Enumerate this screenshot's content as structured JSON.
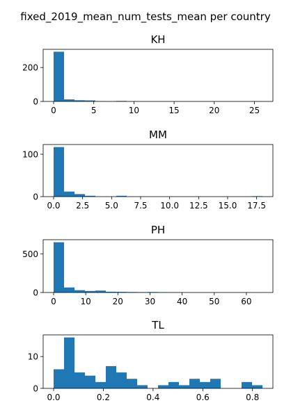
{
  "figure": {
    "suptitle": "fixed_2019_mean_num_tests_mean per country",
    "bar_color": "#1f77b4"
  },
  "chart_data": [
    {
      "type": "bar",
      "title": "KH",
      "xlabel": "",
      "ylabel": "",
      "bin_edges": [
        0.0,
        1.3,
        2.6,
        3.9,
        5.2,
        6.5,
        7.8,
        9.1,
        10.4,
        11.7,
        13.0,
        14.3,
        15.6,
        16.9,
        18.2,
        19.5,
        20.8,
        22.1,
        23.4,
        24.7,
        26.0
      ],
      "values": [
        293,
        12,
        7,
        6,
        2,
        1,
        3,
        1,
        0,
        0,
        0,
        0,
        0,
        0,
        0,
        0,
        0,
        0,
        0,
        1
      ],
      "xlim": [
        -1.3,
        27.3
      ],
      "ylim": [
        0,
        307
      ],
      "xticks": [
        0,
        5,
        10,
        15,
        20,
        25
      ],
      "xtick_labels": [
        "0",
        "5",
        "10",
        "15",
        "20",
        "25"
      ],
      "yticks": [
        0,
        200
      ],
      "ytick_labels": [
        "0",
        "200"
      ]
    },
    {
      "type": "bar",
      "title": "MM",
      "xlabel": "",
      "ylabel": "",
      "bin_edges": [
        0.0,
        0.9,
        1.8,
        2.7,
        3.6,
        4.5,
        5.4,
        6.3,
        7.2,
        8.1,
        9.0,
        9.9,
        10.8,
        11.7,
        12.6,
        13.5,
        14.4,
        15.3,
        16.2,
        17.1,
        18.0
      ],
      "values": [
        117,
        12,
        6,
        2,
        0,
        0,
        2,
        0,
        0,
        0,
        0,
        0,
        0,
        0,
        0,
        0,
        0,
        0,
        0,
        1
      ],
      "xlim": [
        -0.9,
        18.9
      ],
      "ylim": [
        0,
        123
      ],
      "xticks": [
        0,
        2.5,
        5,
        7.5,
        10,
        12.5,
        15,
        17.5
      ],
      "xtick_labels": [
        "0.0",
        "2.5",
        "5.0",
        "7.5",
        "10.0",
        "12.5",
        "15.0",
        "17.5"
      ],
      "yticks": [
        0,
        100
      ],
      "ytick_labels": [
        "0",
        "100"
      ]
    },
    {
      "type": "bar",
      "title": "PH",
      "xlabel": "",
      "ylabel": "",
      "bin_edges": [
        0.0,
        3.25,
        6.5,
        9.75,
        13.0,
        16.25,
        19.5,
        22.75,
        26.0,
        29.25,
        32.5,
        35.75,
        39.0,
        42.25,
        45.5,
        48.75,
        52.0,
        55.25,
        58.5,
        61.75,
        65.0
      ],
      "values": [
        650,
        65,
        30,
        20,
        25,
        10,
        8,
        6,
        5,
        6,
        4,
        2,
        0,
        1,
        1,
        0,
        0,
        0,
        1,
        1
      ],
      "xlim": [
        -3.25,
        68.25
      ],
      "ylim": [
        0,
        683
      ],
      "xticks": [
        0,
        10,
        20,
        30,
        40,
        50,
        60
      ],
      "xtick_labels": [
        "0",
        "10",
        "20",
        "30",
        "40",
        "50",
        "60"
      ],
      "yticks": [
        0,
        500
      ],
      "ytick_labels": [
        "0",
        "500"
      ]
    },
    {
      "type": "bar",
      "title": "TL",
      "xlabel": "",
      "ylabel": "",
      "bin_edges": [
        0.0,
        0.042,
        0.084,
        0.126,
        0.168,
        0.21,
        0.252,
        0.294,
        0.336,
        0.378,
        0.42,
        0.462,
        0.504,
        0.546,
        0.588,
        0.63,
        0.672,
        0.714,
        0.756,
        0.798,
        0.84
      ],
      "values": [
        6,
        16,
        5,
        4,
        2,
        7,
        5,
        3,
        1,
        0,
        1,
        2,
        1,
        3,
        2,
        3,
        0,
        0,
        2,
        1
      ],
      "xlim": [
        -0.042,
        0.882
      ],
      "ylim": [
        0,
        16.8
      ],
      "xticks": [
        0,
        0.2,
        0.4,
        0.6,
        0.8
      ],
      "xtick_labels": [
        "0.0",
        "0.2",
        "0.4",
        "0.6",
        "0.8"
      ],
      "yticks": [
        0,
        10
      ],
      "ytick_labels": [
        "0",
        "10"
      ]
    }
  ]
}
